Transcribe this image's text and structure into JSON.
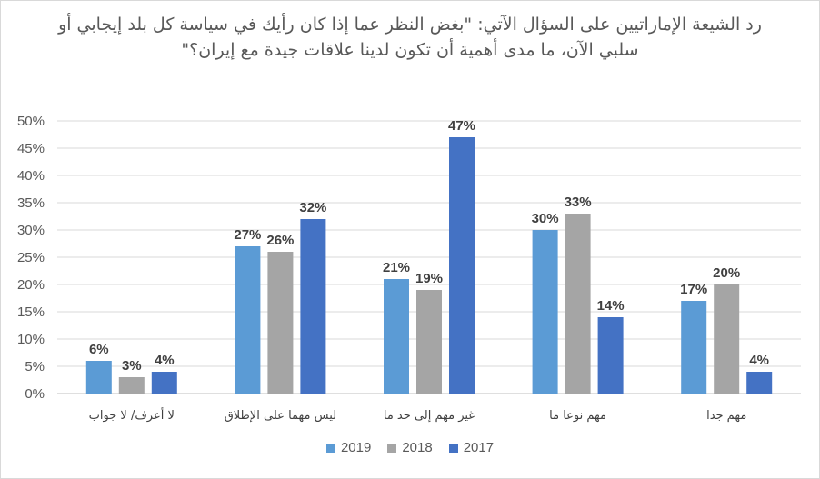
{
  "chart_data": {
    "type": "bar",
    "title": "رد الشيعة الإماراتيين على السؤال الآتي: \"بغض النظر عما إذا كان رأيك في سياسة كل بلد إيجابي أو سلبي الآن، ما مدى أهمية أن تكون لدينا علاقات جيدة مع إيران؟\"",
    "categories": [
      "لا أعرف/ لا جواب",
      "ليس مهما على الإطلاق",
      "غير مهم إلى حد ما",
      "مهم نوعا ما",
      "مهم جدا"
    ],
    "series": [
      {
        "name": "2019",
        "color": "#5b9bd5",
        "values": [
          6,
          27,
          21,
          30,
          17
        ],
        "labels": [
          "6%",
          "27%",
          "21%",
          "30%",
          "17%"
        ]
      },
      {
        "name": "2018",
        "color": "#a5a5a5",
        "values": [
          3,
          26,
          19,
          33,
          20
        ],
        "labels": [
          "3%",
          "26%",
          "19%",
          "33%",
          "20%"
        ]
      },
      {
        "name": "2017",
        "color": "#4472c4",
        "values": [
          4,
          32,
          47,
          14,
          4
        ],
        "labels": [
          "4%",
          "32%",
          "47%",
          "14%",
          "4%"
        ]
      }
    ],
    "ylim": [
      0,
      50
    ],
    "yticks": [
      0,
      5,
      10,
      15,
      20,
      25,
      30,
      35,
      40,
      45,
      50
    ],
    "ytick_labels": [
      "0%",
      "5%",
      "10%",
      "15%",
      "20%",
      "25%",
      "30%",
      "35%",
      "40%",
      "45%",
      "50%"
    ],
    "grid": true,
    "legend_position": "bottom"
  }
}
